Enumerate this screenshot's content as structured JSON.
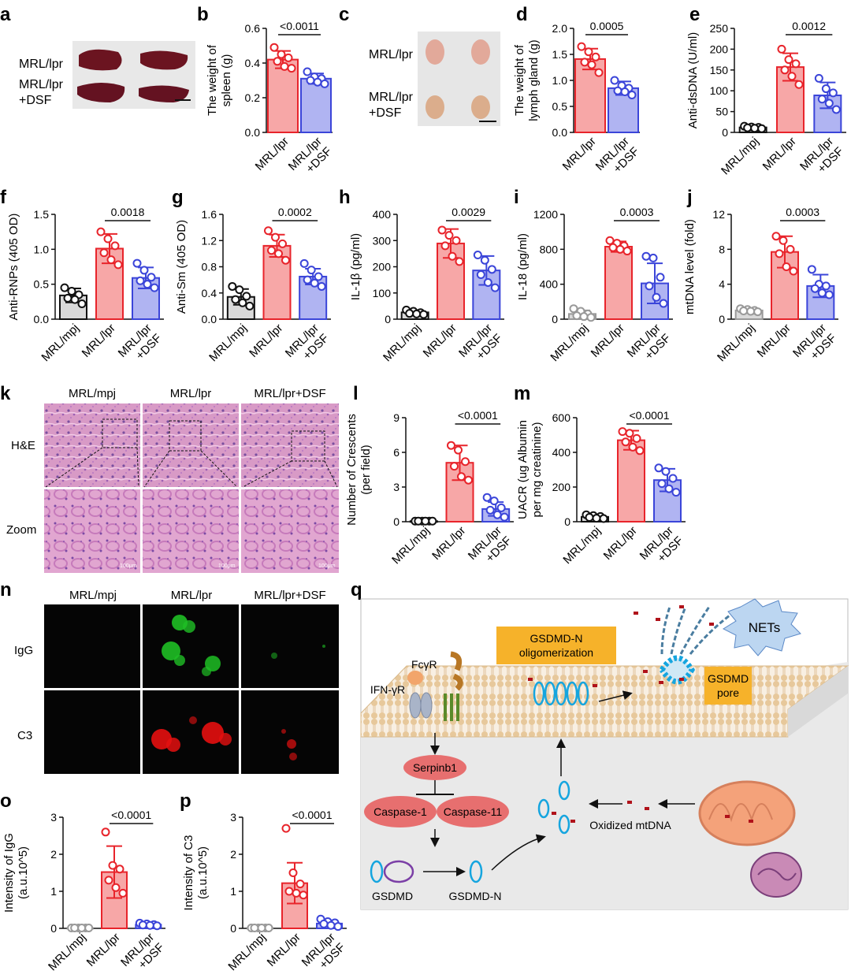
{
  "panels": {
    "a": {
      "label": "a",
      "rows": [
        "MRL/lpr",
        "MRL/lpr\n+DSF"
      ]
    },
    "c": {
      "label": "c",
      "rows": [
        "MRL/lpr",
        "MRL/lpr\n+DSF"
      ]
    },
    "k": {
      "label": "k",
      "cols": [
        "MRL/mpj",
        "MRL/lpr",
        "MRL/lpr+DSF"
      ],
      "rows": [
        "H&E",
        "Zoom"
      ],
      "scale": "100μm"
    },
    "n": {
      "label": "n",
      "cols": [
        "MRL/mpj",
        "MRL/lpr",
        "MRL/lpr+DSF"
      ],
      "rows": [
        "IgG",
        "C3"
      ]
    },
    "q": {
      "label": "q",
      "nets": "NETs",
      "oligo": "GSDMD-N\noligomerization",
      "pore": "GSDMD\npore",
      "fcgr": "FcγR",
      "ifngr": "IFN-γR",
      "serpinb1": "Serpinb1",
      "casp1": "Caspase-1",
      "casp11": "Caspase-11",
      "gsdmd": "GSDMD",
      "gsdmdn": "GSDMD-N",
      "oxmt": "Oxidized mtDNA"
    }
  },
  "chart_data": [
    {
      "id": "b",
      "type": "bar",
      "categories": [
        "MRL/lpr",
        "MRL/lpr\n+DSF"
      ],
      "colors": [
        "#e8242b",
        "#3b45d9"
      ],
      "fills": [
        "#f7a7a7",
        "#b0b4f2"
      ],
      "values": [
        0.42,
        0.31
      ],
      "sd": [
        0.05,
        0.03
      ],
      "points": [
        [
          0.49,
          0.45,
          0.43,
          0.41,
          0.38,
          0.37
        ],
        [
          0.35,
          0.32,
          0.31,
          0.3,
          0.29,
          0.28
        ]
      ],
      "ylabel": "The weight of\nspleen (g)",
      "ylim": [
        0,
        0.6
      ],
      "ticks": [
        0.0,
        0.2,
        0.4,
        0.6
      ],
      "tick_labels": [
        "0.0",
        "0.2",
        "0.4",
        "0.6"
      ],
      "sig": {
        "text": "<0.0011",
        "from": 0,
        "to": 1
      }
    },
    {
      "id": "d",
      "type": "bar",
      "categories": [
        "MRL/lpr",
        "MRL/lpr\n+DSF"
      ],
      "colors": [
        "#e8242b",
        "#3b45d9"
      ],
      "fills": [
        "#f7a7a7",
        "#b0b4f2"
      ],
      "values": [
        1.41,
        0.85
      ],
      "sd": [
        0.2,
        0.13
      ],
      "points": [
        [
          1.65,
          1.55,
          1.45,
          1.35,
          1.3,
          1.15
        ],
        [
          1.0,
          0.9,
          0.85,
          0.8,
          0.78,
          0.72
        ]
      ],
      "ylabel": "The weight of\nlymph gland (g)",
      "ylim": [
        0,
        2.0
      ],
      "ticks": [
        0,
        0.5,
        1.0,
        1.5,
        2.0
      ],
      "tick_labels": [
        "0.0",
        "0.5",
        "1.0",
        "1.5",
        "2.0"
      ],
      "sig": {
        "text": "0.0005",
        "from": 0,
        "to": 1
      }
    },
    {
      "id": "e",
      "type": "bar",
      "categories": [
        "MRL/mpj",
        "MRL/lpr",
        "MRL/lpr\n+DSF"
      ],
      "colors": [
        "#111111",
        "#e8242b",
        "#3b45d9"
      ],
      "fills": [
        "#d9d9d9",
        "#f7a7a7",
        "#b0b4f2"
      ],
      "values": [
        12,
        157,
        89
      ],
      "sd": [
        3,
        33,
        31
      ],
      "points": [
        [
          15,
          13,
          12,
          11,
          10,
          9
        ],
        [
          200,
          175,
          165,
          150,
          135,
          115
        ],
        [
          130,
          105,
          95,
          80,
          70,
          55
        ]
      ],
      "ylabel": "Anti-dsDNA (U/ml)",
      "ylim": [
        0,
        250
      ],
      "ticks": [
        0,
        50,
        100,
        150,
        200,
        250
      ],
      "tick_labels": [
        "0",
        "50",
        "100",
        "150",
        "200",
        "250"
      ],
      "sig": {
        "text": "0.0012",
        "from": 1,
        "to": 2
      }
    },
    {
      "id": "f",
      "type": "bar",
      "categories": [
        "MRL/mpj",
        "MRL/lpr",
        "MRL/lpr\n+DSF"
      ],
      "colors": [
        "#111111",
        "#e8242b",
        "#3b45d9"
      ],
      "fills": [
        "#d9d9d9",
        "#f7a7a7",
        "#b0b4f2"
      ],
      "values": [
        0.34,
        1.01,
        0.59
      ],
      "sd": [
        0.1,
        0.21,
        0.15
      ],
      "points": [
        [
          0.45,
          0.4,
          0.35,
          0.3,
          0.28,
          0.22
        ],
        [
          1.25,
          1.15,
          1.05,
          0.95,
          0.85,
          0.78
        ],
        [
          0.8,
          0.7,
          0.6,
          0.55,
          0.5,
          0.45
        ]
      ],
      "ylabel": "Anti-RNPs (405 OD)",
      "ylim": [
        0,
        1.5
      ],
      "ticks": [
        0,
        0.5,
        1.0,
        1.5
      ],
      "tick_labels": [
        "0.0",
        "0.5",
        "1.0",
        "1.5"
      ],
      "sig": {
        "text": "0.0018",
        "from": 1,
        "to": 2
      }
    },
    {
      "id": "g",
      "type": "bar",
      "categories": [
        "MRL/mpj",
        "MRL/lpr",
        "MRL/lpr\n+DSF"
      ],
      "colors": [
        "#111111",
        "#e8242b",
        "#3b45d9"
      ],
      "fills": [
        "#d9d9d9",
        "#f7a7a7",
        "#b0b4f2"
      ],
      "values": [
        0.34,
        1.12,
        0.65
      ],
      "sd": [
        0.12,
        0.17,
        0.12
      ],
      "points": [
        [
          0.5,
          0.45,
          0.35,
          0.3,
          0.25,
          0.2
        ],
        [
          1.35,
          1.25,
          1.15,
          1.05,
          1.0,
          0.9
        ],
        [
          0.85,
          0.75,
          0.65,
          0.6,
          0.55,
          0.5
        ]
      ],
      "ylabel": "Anti-Sm (405 OD)",
      "ylim": [
        0,
        1.6
      ],
      "ticks": [
        0,
        0.4,
        0.8,
        1.2,
        1.6
      ],
      "tick_labels": [
        "0.0",
        "0.4",
        "0.8",
        "1.2",
        "1.6"
      ],
      "sig": {
        "text": "0.0002",
        "from": 1,
        "to": 2
      }
    },
    {
      "id": "h",
      "type": "bar",
      "categories": [
        "MRL/mpj",
        "MRL/lpr",
        "MRL/lpr\n+DSF"
      ],
      "colors": [
        "#111111",
        "#e8242b",
        "#3b45d9"
      ],
      "fills": [
        "#d9d9d9",
        "#f7a7a7",
        "#b0b4f2"
      ],
      "values": [
        26,
        289,
        186
      ],
      "sd": [
        8,
        55,
        55
      ],
      "points": [
        [
          35,
          30,
          25,
          22,
          20,
          18
        ],
        [
          340,
          320,
          300,
          280,
          240,
          220
        ],
        [
          245,
          225,
          190,
          170,
          140,
          120
        ]
      ],
      "ylabel": "IL-1β (pg/ml)",
      "ylim": [
        0,
        400
      ],
      "ticks": [
        0,
        100,
        200,
        300,
        400
      ],
      "tick_labels": [
        "0",
        "100",
        "200",
        "300",
        "400"
      ],
      "sig": {
        "text": "0.0029",
        "from": 1,
        "to": 2
      }
    },
    {
      "id": "i",
      "type": "bar",
      "categories": [
        "MRL/mpj",
        "MRL/lpr",
        "MRL/lpr\n+DSF"
      ],
      "colors": [
        "#999999",
        "#e8242b",
        "#3b45d9"
      ],
      "fills": [
        "#d9d9d9",
        "#f7a7a7",
        "#b0b4f2"
      ],
      "values": [
        60,
        830,
        410
      ],
      "sd": [
        40,
        60,
        230
      ],
      "points": [
        [
          120,
          90,
          60,
          40,
          30,
          20
        ],
        [
          900,
          870,
          840,
          820,
          800,
          780
        ],
        [
          720,
          700,
          480,
          380,
          250,
          180
        ]
      ],
      "ylabel": "IL-18 (pg/ml)",
      "ylim": [
        0,
        1200
      ],
      "ticks": [
        0,
        400,
        800,
        1200
      ],
      "tick_labels": [
        "0",
        "400",
        "800",
        "1200"
      ],
      "sig": {
        "text": "0.0003",
        "from": 1,
        "to": 2
      }
    },
    {
      "id": "j",
      "type": "bar",
      "categories": [
        "MRL/mpj",
        "MRL/lpr",
        "MRL/lpr\n+DSF"
      ],
      "colors": [
        "#999999",
        "#e8242b",
        "#3b45d9"
      ],
      "fills": [
        "#d9d9d9",
        "#f7a7a7",
        "#b0b4f2"
      ],
      "values": [
        1.0,
        7.7,
        3.8
      ],
      "sd": [
        0.15,
        1.8,
        1.3
      ],
      "points": [
        [
          1.2,
          1.1,
          1.0,
          0.95,
          0.9,
          0.85
        ],
        [
          9.5,
          9.0,
          8.0,
          7.5,
          6.0,
          5.5
        ],
        [
          5.7,
          4.0,
          3.8,
          3.5,
          3.0,
          2.8
        ]
      ],
      "ylabel": "mtDNA level (fold)",
      "ylim": [
        0,
        12
      ],
      "ticks": [
        0,
        4,
        8,
        12
      ],
      "tick_labels": [
        "0",
        "4",
        "8",
        "12"
      ],
      "sig": {
        "text": "0.0003",
        "from": 1,
        "to": 2
      }
    },
    {
      "id": "l",
      "type": "bar",
      "categories": [
        "MRL/mpj",
        "MRL/lpr",
        "MRL/lpr\n+DSF"
      ],
      "colors": [
        "#111111",
        "#e8242b",
        "#3b45d9"
      ],
      "fills": [
        "#d9d9d9",
        "#f7a7a7",
        "#b0b4f2"
      ],
      "values": [
        0.05,
        5.1,
        1.1
      ],
      "sd": [
        0.05,
        1.5,
        0.6
      ],
      "points": [
        [
          0.05,
          0.05,
          0.05,
          0.05,
          0.05,
          0.05
        ],
        [
          6.6,
          6.2,
          5.2,
          4.8,
          3.9,
          3.6
        ],
        [
          2.1,
          1.8,
          1.2,
          1.0,
          0.6,
          0.4
        ]
      ],
      "ylabel": "Number of Crescents\n(per field)",
      "ylim": [
        0,
        9
      ],
      "ticks": [
        0,
        3,
        6,
        9
      ],
      "tick_labels": [
        "0",
        "3",
        "6",
        "9"
      ],
      "sig": {
        "text": "<0.0001",
        "from": 1,
        "to": 2
      }
    },
    {
      "id": "m",
      "type": "bar",
      "categories": [
        "MRL/mpj",
        "MRL/lpr",
        "MRL/lpr\n+DSF"
      ],
      "colors": [
        "#111111",
        "#e8242b",
        "#3b45d9"
      ],
      "fills": [
        "#d9d9d9",
        "#f7a7a7",
        "#b0b4f2"
      ],
      "values": [
        28,
        470,
        240
      ],
      "sd": [
        10,
        55,
        65
      ],
      "points": [
        [
          40,
          35,
          30,
          25,
          20,
          18
        ],
        [
          520,
          510,
          480,
          460,
          430,
          410
        ],
        [
          310,
          290,
          250,
          220,
          190,
          170
        ]
      ],
      "ylabel": "UACR (ug Albumin\nper mg creatinine)",
      "ylim": [
        0,
        600
      ],
      "ticks": [
        0,
        200,
        400,
        600
      ],
      "tick_labels": [
        "0",
        "200",
        "400",
        "600"
      ],
      "sig": {
        "text": "<0.0001",
        "from": 1,
        "to": 2
      }
    },
    {
      "id": "o",
      "type": "bar",
      "categories": [
        "MRL/mpj",
        "MRL/lpr",
        "MRL/lpr\n+DSF"
      ],
      "colors": [
        "#999999",
        "#e8242b",
        "#3b45d9"
      ],
      "fills": [
        "#d9d9d9",
        "#f7a7a7",
        "#b0b4f2"
      ],
      "values": [
        0.01,
        1.52,
        0.1
      ],
      "sd": [
        0.01,
        0.7,
        0.03
      ],
      "points": [
        [
          0.01,
          0.01,
          0.01,
          0.01,
          0.01,
          0.01
        ],
        [
          2.6,
          1.7,
          1.6,
          1.3,
          1.1,
          0.95
        ],
        [
          0.14,
          0.12,
          0.1,
          0.09,
          0.08,
          0.07
        ]
      ],
      "ylabel": "Intensity of IgG\n(a.u.10^5)",
      "ylim": [
        0,
        3
      ],
      "ticks": [
        0,
        1,
        2,
        3
      ],
      "tick_labels": [
        "0",
        "1",
        "2",
        "3"
      ],
      "sig": {
        "text": "<0.0001",
        "from": 1,
        "to": 2
      }
    },
    {
      "id": "p",
      "type": "bar",
      "categories": [
        "MRL/mpj",
        "MRL/lpr",
        "MRL/lpr\n+DSF"
      ],
      "colors": [
        "#999999",
        "#e8242b",
        "#3b45d9"
      ],
      "fills": [
        "#d9d9d9",
        "#f7a7a7",
        "#b0b4f2"
      ],
      "values": [
        0.01,
        1.22,
        0.13
      ],
      "sd": [
        0.01,
        0.55,
        0.06
      ],
      "points": [
        [
          0.01,
          0.01,
          0.01,
          0.01,
          0.01,
          0.01
        ],
        [
          2.7,
          1.5,
          1.2,
          1.0,
          0.95,
          0.9
        ],
        [
          0.25,
          0.18,
          0.15,
          0.12,
          0.08,
          0.05
        ]
      ],
      "ylabel": "Intensity of C3\n(a.u.10^5)",
      "ylim": [
        0,
        3
      ],
      "ticks": [
        0,
        1,
        2,
        3
      ],
      "tick_labels": [
        "0",
        "1",
        "2",
        "3"
      ],
      "sig": {
        "text": "<0.0001",
        "from": 1,
        "to": 2
      }
    }
  ]
}
